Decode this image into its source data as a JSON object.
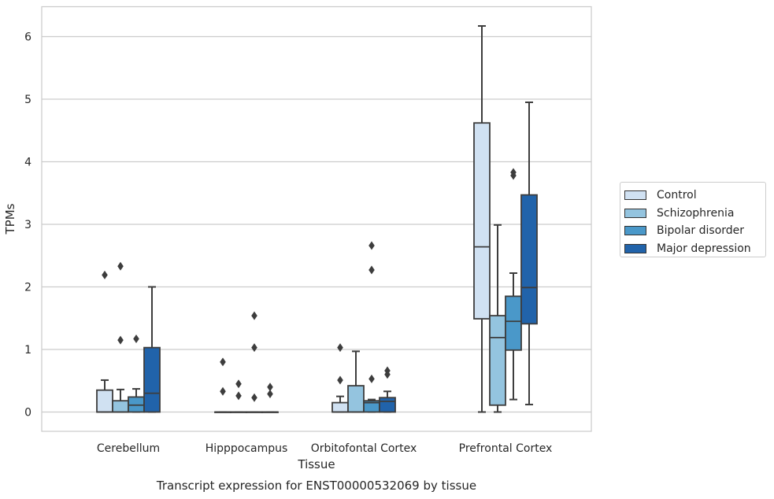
{
  "chart_data": {
    "type": "boxplot",
    "title": "Transcript expression for ENST00000532069 by tissue",
    "xlabel": "Tissue",
    "ylabel": "TPMs",
    "ylim": [
      -0.3,
      6.5
    ],
    "yticks": [
      "0",
      "1",
      "2",
      "3",
      "4",
      "5",
      "6"
    ],
    "grid": "horizontal",
    "legend_position": "right",
    "categories": [
      "Cerebellum",
      "Hipppocampus",
      "Orbitofontal Cortex",
      "Prefrontal Cortex"
    ],
    "series": [
      {
        "name": "Control",
        "color": "#d0e1f2",
        "boxes": [
          {
            "whisker_low": 0,
            "q1": 0,
            "median": 0,
            "q3": 0.35,
            "whisker_high": 0.51,
            "outliers": [
              2.19
            ]
          },
          {
            "whisker_low": 0,
            "q1": 0,
            "median": 0,
            "q3": 0,
            "whisker_high": 0,
            "outliers": [
              0.8,
              0.33
            ]
          },
          {
            "whisker_low": 0,
            "q1": 0,
            "median": 0,
            "q3": 0.15,
            "whisker_high": 0.25,
            "outliers": [
              1.03,
              0.51
            ]
          },
          {
            "whisker_low": 0,
            "q1": 1.49,
            "median": 2.64,
            "q3": 4.62,
            "whisker_high": 6.17,
            "outliers": []
          }
        ]
      },
      {
        "name": "Schizophrenia",
        "color": "#94c4df",
        "boxes": [
          {
            "whisker_low": 0,
            "q1": 0,
            "median": 0,
            "q3": 0.18,
            "whisker_high": 0.36,
            "outliers": [
              2.33,
              1.15
            ]
          },
          {
            "whisker_low": 0,
            "q1": 0,
            "median": 0,
            "q3": 0,
            "whisker_high": 0,
            "outliers": [
              0.45,
              0.26
            ]
          },
          {
            "whisker_low": 0,
            "q1": 0,
            "median": 0,
            "q3": 0.42,
            "whisker_high": 0.97,
            "outliers": []
          },
          {
            "whisker_low": 0,
            "q1": 0.11,
            "median": 1.19,
            "q3": 1.54,
            "whisker_high": 2.99,
            "outliers": []
          }
        ]
      },
      {
        "name": "Bipolar disorder",
        "color": "#4a98c9",
        "boxes": [
          {
            "whisker_low": 0,
            "q1": 0,
            "median": 0.11,
            "q3": 0.24,
            "whisker_high": 0.37,
            "outliers": [
              1.17
            ]
          },
          {
            "whisker_low": 0,
            "q1": 0,
            "median": 0,
            "q3": 0,
            "whisker_high": 0,
            "outliers": [
              1.54,
              1.03,
              0.23
            ]
          },
          {
            "whisker_low": 0,
            "q1": 0,
            "median": 0.15,
            "q3": 0.18,
            "whisker_high": 0.2,
            "outliers": [
              2.66,
              2.27,
              0.53
            ]
          },
          {
            "whisker_low": 0.2,
            "q1": 0.99,
            "median": 1.45,
            "q3": 1.85,
            "whisker_high": 2.22,
            "outliers": [
              3.83,
              3.78
            ]
          }
        ]
      },
      {
        "name": "Major depression",
        "color": "#2163aa",
        "boxes": [
          {
            "whisker_low": 0,
            "q1": 0,
            "median": 0.3,
            "q3": 1.03,
            "whisker_high": 2.0,
            "outliers": []
          },
          {
            "whisker_low": 0,
            "q1": 0,
            "median": 0,
            "q3": 0,
            "whisker_high": 0,
            "outliers": [
              0.4,
              0.29
            ]
          },
          {
            "whisker_low": 0,
            "q1": 0,
            "median": 0.17,
            "q3": 0.23,
            "whisker_high": 0.33,
            "outliers": [
              0.66,
              0.6
            ]
          },
          {
            "whisker_low": 0.12,
            "q1": 1.41,
            "median": 1.99,
            "q3": 3.47,
            "whisker_high": 4.95,
            "outliers": []
          }
        ]
      }
    ]
  }
}
